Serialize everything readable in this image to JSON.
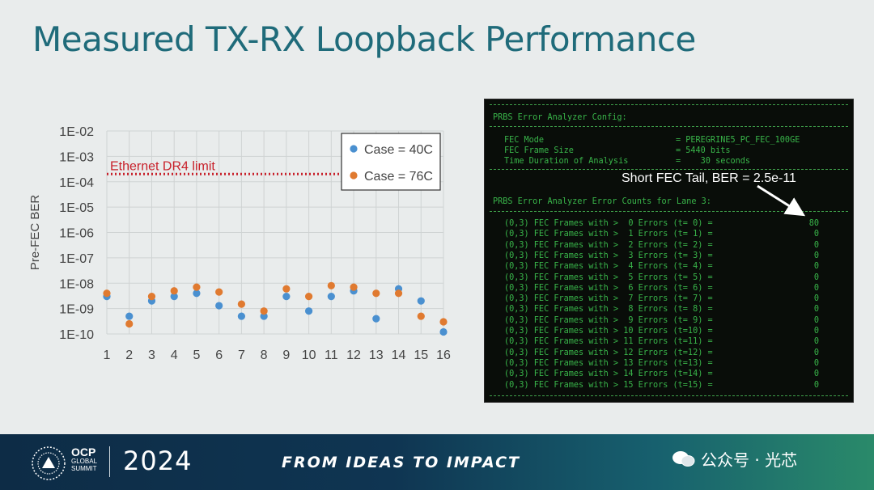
{
  "slide": {
    "title": "Measured TX-RX Loopback Performance"
  },
  "chart_data": {
    "type": "scatter",
    "ylabel": "Pre-FEC BER",
    "xlabel": "",
    "y_scale": "log",
    "ylim": [
      "1E-10",
      "1E-02"
    ],
    "y_tick_labels": [
      "1E-02",
      "1E-03",
      "1E-04",
      "1E-05",
      "1E-06",
      "1E-07",
      "1E-08",
      "1E-09",
      "1E-10"
    ],
    "x_tick_labels": [
      "1",
      "2",
      "3",
      "4",
      "5",
      "6",
      "7",
      "8",
      "9",
      "10",
      "11",
      "12",
      "13",
      "14",
      "15",
      "16"
    ],
    "xlim": [
      1,
      16
    ],
    "grid": true,
    "legend_position": "top-right",
    "reference_line": {
      "label": "Ethernet DR4 limit",
      "y": 0.0002,
      "color": "#c8202a"
    },
    "series": [
      {
        "name": "Case = 40C",
        "color": "#4a90d0",
        "x": [
          1,
          2,
          3,
          4,
          5,
          6,
          7,
          8,
          9,
          10,
          11,
          12,
          13,
          14,
          15,
          16
        ],
        "y": [
          3e-09,
          5e-10,
          2e-09,
          3e-09,
          4e-09,
          1.3e-09,
          5e-10,
          5e-10,
          3e-09,
          8e-10,
          3e-09,
          5e-09,
          4e-10,
          6e-09,
          2e-09,
          1.2e-10
        ]
      },
      {
        "name": "Case = 76C",
        "color": "#e07a30",
        "x": [
          1,
          2,
          3,
          4,
          5,
          6,
          7,
          8,
          9,
          10,
          11,
          12,
          13,
          14,
          15,
          16
        ],
        "y": [
          4e-09,
          2.5e-10,
          3e-09,
          5e-09,
          7e-09,
          4.5e-09,
          1.5e-09,
          8e-10,
          6e-09,
          3e-09,
          8e-09,
          7e-09,
          4e-09,
          4e-09,
          5e-10,
          3e-10
        ]
      }
    ]
  },
  "terminal": {
    "header": "PRBS Error Analyzer Config:",
    "config": [
      {
        "key": "FEC Mode",
        "value": "= PEREGRINE5_PC_FEC_100GE"
      },
      {
        "key": "FEC Frame Size",
        "value": "= 5440 bits"
      },
      {
        "key": "Time Duration of Analysis",
        "value": "=    30 seconds"
      }
    ],
    "counts_header": "PRBS Error Analyzer Error Counts for Lane 3:",
    "rows": [
      {
        "text": "(0,3) FEC Frames with >  0 Errors (t= 0) =",
        "value": "80"
      },
      {
        "text": "(0,3) FEC Frames with >  1 Errors (t= 1) =",
        "value": "0"
      },
      {
        "text": "(0,3) FEC Frames with >  2 Errors (t= 2) =",
        "value": "0"
      },
      {
        "text": "(0,3) FEC Frames with >  3 Errors (t= 3) =",
        "value": "0"
      },
      {
        "text": "(0,3) FEC Frames with >  4 Errors (t= 4) =",
        "value": "0"
      },
      {
        "text": "(0,3) FEC Frames with >  5 Errors (t= 5) =",
        "value": "0"
      },
      {
        "text": "(0,3) FEC Frames with >  6 Errors (t= 6) =",
        "value": "0"
      },
      {
        "text": "(0,3) FEC Frames with >  7 Errors (t= 7) =",
        "value": "0"
      },
      {
        "text": "(0,3) FEC Frames with >  8 Errors (t= 8) =",
        "value": "0"
      },
      {
        "text": "(0,3) FEC Frames with >  9 Errors (t= 9) =",
        "value": "0"
      },
      {
        "text": "(0,3) FEC Frames with > 10 Errors (t=10) =",
        "value": "0"
      },
      {
        "text": "(0,3) FEC Frames with > 11 Errors (t=11) =",
        "value": "0"
      },
      {
        "text": "(0,3) FEC Frames with > 12 Errors (t=12) =",
        "value": "0"
      },
      {
        "text": "(0,3) FEC Frames with > 13 Errors (t=13) =",
        "value": "0"
      },
      {
        "text": "(0,3) FEC Frames with > 14 Errors (t=14) =",
        "value": "0"
      },
      {
        "text": "(0,3) FEC Frames with > 15 Errors (t=15) =",
        "value": "0"
      }
    ],
    "annotation": "Short FEC Tail, BER = 2.5e-11"
  },
  "footer": {
    "logo_text": "OCP",
    "logo_sub1": "GLOBAL",
    "logo_sub2": "SUMMIT",
    "year": "2024",
    "tagline": "FROM IDEAS TO IMPACT",
    "watermark": "公众号 · 光芯"
  }
}
